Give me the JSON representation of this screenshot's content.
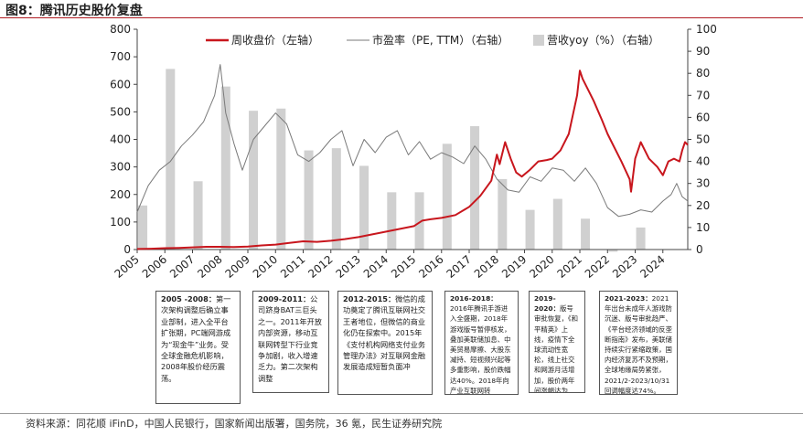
{
  "title": "图8：腾讯历史股价复盘",
  "source": "资料来源：同花顺 iFinD，中国人民银行，国家新闻出版署，国务院，36 氪，民生证券研究院",
  "colors": {
    "price": "#c8161d",
    "pe": "#7a7a7a",
    "revenue": "#d0d0d0",
    "title_rule": "#b01c22"
  },
  "chart_data": {
    "type": "bar",
    "title": "图8：腾讯历史股价复盘",
    "grid": false,
    "legend_position": "top",
    "x_ticks": [
      "2005",
      "2006",
      "2007",
      "2008",
      "2009",
      "2010",
      "2011",
      "2012",
      "2013",
      "2014",
      "2015",
      "2016",
      "2017",
      "2018",
      "2019",
      "2020",
      "2021",
      "2022",
      "2023",
      "2024"
    ],
    "xlim": [
      2005.0,
      2024.9
    ],
    "y_left": {
      "label": "",
      "lim": [
        0,
        800
      ],
      "ticks": [
        0,
        100,
        200,
        300,
        400,
        500,
        600,
        700,
        800
      ]
    },
    "y_right": {
      "label": "",
      "lim": [
        0,
        100
      ],
      "ticks": [
        0,
        10,
        20,
        30,
        40,
        50,
        60,
        70,
        80,
        90,
        100
      ]
    },
    "series": [
      {
        "name": "周收盘价（左轴）",
        "type": "line",
        "axis": "left",
        "x": [
          2005.0,
          2005.5,
          2006.0,
          2006.5,
          2007.0,
          2007.5,
          2008.0,
          2008.5,
          2009.0,
          2009.5,
          2010.0,
          2010.5,
          2011.0,
          2011.5,
          2012.0,
          2012.5,
          2013.0,
          2013.5,
          2014.0,
          2014.5,
          2015.0,
          2015.3,
          2015.6,
          2016.0,
          2016.5,
          2017.0,
          2017.4,
          2017.8,
          2018.0,
          2018.1,
          2018.3,
          2018.5,
          2018.7,
          2018.9,
          2019.2,
          2019.5,
          2019.8,
          2020.0,
          2020.3,
          2020.6,
          2020.9,
          2021.0,
          2021.1,
          2021.3,
          2021.5,
          2021.8,
          2022.0,
          2022.2,
          2022.5,
          2022.8,
          2022.85,
          2023.0,
          2023.2,
          2023.5,
          2023.8,
          2024.0,
          2024.2,
          2024.4,
          2024.6,
          2024.7,
          2024.8,
          2024.9
        ],
        "values": [
          2,
          3,
          5,
          6,
          8,
          10,
          10,
          9,
          11,
          15,
          18,
          24,
          30,
          28,
          32,
          38,
          45,
          55,
          65,
          75,
          85,
          105,
          110,
          115,
          125,
          155,
          195,
          250,
          345,
          310,
          390,
          330,
          280,
          265,
          290,
          320,
          325,
          330,
          360,
          420,
          560,
          650,
          620,
          580,
          540,
          470,
          420,
          380,
          320,
          255,
          210,
          330,
          390,
          330,
          300,
          270,
          320,
          330,
          320,
          360,
          390,
          380
        ]
      },
      {
        "name": "市盈率（PE, TTM）（右轴）",
        "type": "line",
        "axis": "right",
        "x": [
          2005.0,
          2005.4,
          2005.8,
          2006.2,
          2006.6,
          2007.0,
          2007.4,
          2007.8,
          2008.0,
          2008.2,
          2008.5,
          2008.8,
          2009.2,
          2009.6,
          2010.0,
          2010.4,
          2010.8,
          2011.2,
          2011.6,
          2012.0,
          2012.4,
          2012.8,
          2013.2,
          2013.6,
          2014.0,
          2014.4,
          2014.8,
          2015.2,
          2015.6,
          2016.0,
          2016.4,
          2016.8,
          2017.2,
          2017.6,
          2018.0,
          2018.4,
          2018.8,
          2019.2,
          2019.6,
          2020.0,
          2020.4,
          2020.8,
          2021.2,
          2021.6,
          2022.0,
          2022.4,
          2022.8,
          2023.2,
          2023.6,
          2024.0,
          2024.3,
          2024.5,
          2024.7,
          2024.9
        ],
        "values": [
          17,
          29,
          36,
          40,
          47,
          52,
          58,
          70,
          84,
          62,
          48,
          36,
          50,
          56,
          62,
          57,
          43,
          40,
          44,
          50,
          54,
          38,
          50,
          44,
          51,
          54,
          43,
          49,
          41,
          44,
          42,
          39,
          47,
          41,
          32,
          27,
          26,
          33,
          31,
          37,
          36,
          31,
          37,
          30,
          19,
          15,
          16,
          18,
          17,
          22,
          25,
          30,
          24,
          22
        ]
      },
      {
        "name": "营收yoy（%）（右轴）",
        "type": "bar",
        "axis": "right",
        "categories": [
          "2005",
          "2006",
          "2007",
          "2008",
          "2009",
          "2010",
          "2011",
          "2012",
          "2013",
          "2014",
          "2015",
          "2016",
          "2017",
          "2018",
          "2019",
          "2020",
          "2021",
          "2022",
          "2023",
          "2024"
        ],
        "values": [
          20,
          82,
          31,
          74,
          63,
          64,
          45,
          46,
          38,
          26,
          26,
          48,
          56,
          32,
          18,
          23,
          14,
          -1,
          10,
          null
        ]
      }
    ]
  },
  "annotations": [
    {
      "period": "2005 -2008：",
      "text": "第一次架构调整后确立事业部制，进入全平台扩张期，PC端网游成为“现金牛”业务。受全球金融危机影响，2008年股价经历震荡。"
    },
    {
      "period": "2009-2011：",
      "text": "公司跻身BAT三巨头之一。2011年开放内部资源，移动互联网转型下行业竞争加剧，收入增速乏力。第二次架构调整"
    },
    {
      "period": "2012-2015：",
      "text": "微信的成功奠定了腾讯互联网社交王者地位，但微信的商业化仍在探索中。2015年《支付机构网络支付业务管理办法》对互联网金融发展造成短暂负面冲"
    },
    {
      "period": "2016-2018：",
      "text": "2016年腾讯手游进入全盛期，2018年游戏版号暂停核发，叠加美联储加息、中美贸易摩擦、大股东减持、短视频兴起等多重影响，股价跌幅达40%。2018年向产业互联网转"
    },
    {
      "period": "2019-2020：",
      "text": "版号审批恢复，《和平精英》上线，疫情下全球流动性宽松，线上社交和网游月活增加，股价两年间涨幅达为60%。"
    },
    {
      "period": "2021-2023：",
      "text": "2021年出台未成年人游戏防沉迷、版号审批趋严、《平台经济领域的反垄断指南》发布，美联储持续实行紧缩政策，国内经济复苏不及预期，全球地缘局势紧张，2021/2-2023/10/31回调幅度达74%。"
    }
  ]
}
